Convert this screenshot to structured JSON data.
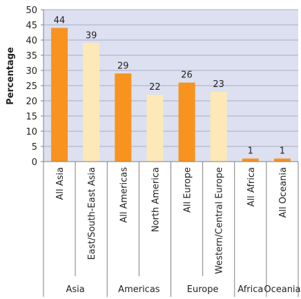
{
  "chart_data": {
    "type": "bar",
    "ylabel": "Percentage",
    "xlabel": "",
    "ylim": [
      0,
      50
    ],
    "y_ticks": [
      0,
      5,
      10,
      15,
      20,
      25,
      30,
      35,
      40,
      45,
      50
    ],
    "grid": true,
    "categories": [
      "All Asia",
      "East/South-East Asia",
      "All Americas",
      "North America",
      "All Europe",
      "Western/Central Europe",
      "All Africa",
      "All Oceania"
    ],
    "values": [
      44,
      39,
      29,
      22,
      26,
      23,
      1,
      1
    ],
    "data_labels": [
      "44",
      "39",
      "29",
      "22",
      "26",
      "23",
      "1",
      "1"
    ],
    "bar_kind": [
      "all",
      "sub",
      "all",
      "sub",
      "all",
      "sub",
      "all",
      "all"
    ],
    "groups": [
      {
        "name": "Asia",
        "count": 2
      },
      {
        "name": "Americas",
        "count": 2
      },
      {
        "name": "Europe",
        "count": 2
      },
      {
        "name": "Africa",
        "count": 1
      },
      {
        "name": "Oceania",
        "count": 1
      }
    ],
    "colors": {
      "all": "#f7931e",
      "sub": "#fde8b8",
      "plot_bg": "#dde0f0",
      "grid": "#a9acc0",
      "axis": "#7f7f7f"
    }
  }
}
